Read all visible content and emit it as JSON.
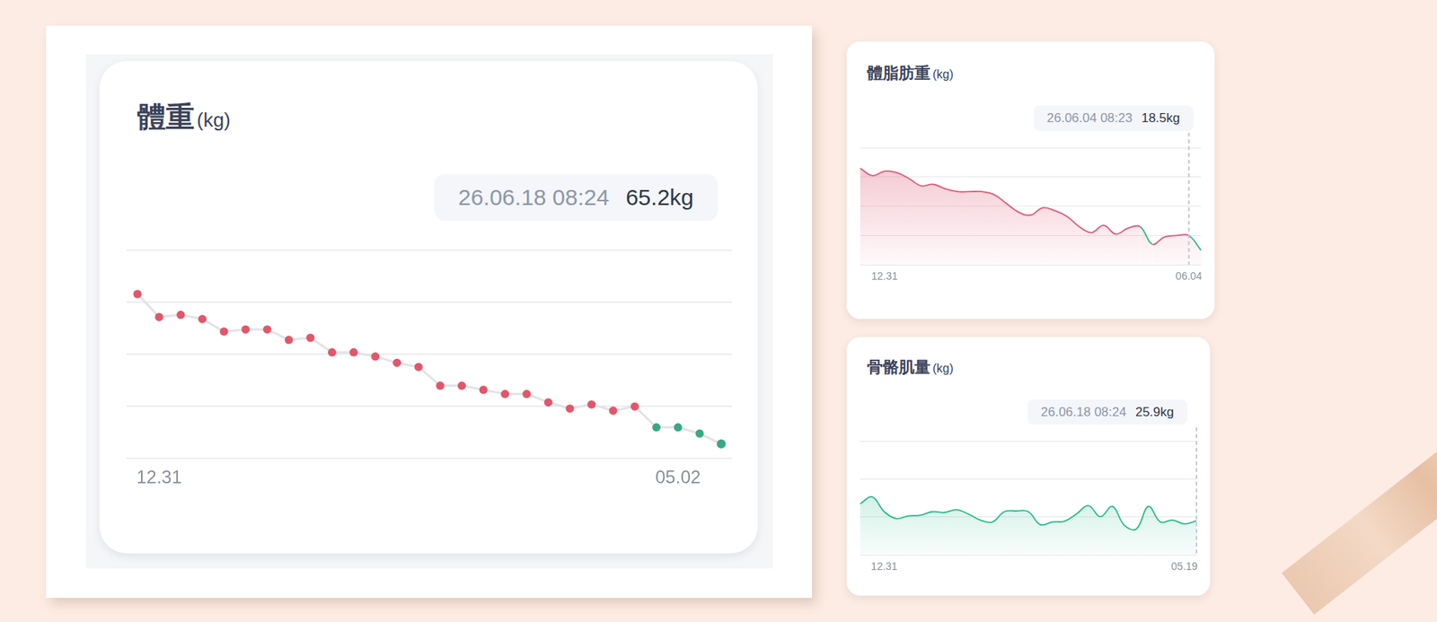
{
  "chart_data": [
    {
      "type": "line",
      "title": "體重",
      "subtitle": "(kg)",
      "annotation": {
        "label": "26.06.18 08:24",
        "value": 65.2,
        "value_label": "65.2kg"
      },
      "categories": [
        null,
        "12.31",
        null,
        null,
        null,
        null,
        null,
        null,
        null,
        null,
        null,
        null,
        null,
        null,
        null,
        null,
        null,
        null,
        null,
        null,
        null,
        null,
        null,
        null,
        null,
        "05.02",
        null,
        null
      ],
      "values": [
        72.4,
        71.3,
        71.4,
        71.2,
        70.6,
        70.7,
        70.7,
        70.2,
        70.3,
        69.6,
        69.6,
        69.4,
        69.1,
        68.9,
        68.0,
        68.0,
        67.8,
        67.6,
        67.6,
        67.2,
        66.9,
        67.1,
        66.8,
        67.0,
        66.0,
        66.0,
        65.7,
        65.2
      ],
      "color": "#e2e3e8",
      "colors": [
        "#e3566a",
        "#e3566a",
        "#e3566a",
        "#e3566a",
        "#e3566a",
        "#e3566a",
        "#e3566a",
        "#e3566a",
        "#e3566a",
        "#e3566a",
        "#e3566a",
        "#e3566a",
        "#e3566a",
        "#e3566a",
        "#e3566a",
        "#e3566a",
        "#e3566a",
        "#e3566a",
        "#e3566a",
        "#e3566a",
        "#e3566a",
        "#e3566a",
        "#e3566a",
        "#e3566a",
        "#3aa882",
        "#3aa882",
        "#3aa882",
        "#3aa882"
      ],
      "marker": "circle",
      "line_style": "solid",
      "ylim": [
        64.5,
        74.5
      ],
      "yticks": [
        64.5,
        67,
        69.5,
        72,
        74.5
      ],
      "grid": true,
      "tick_labels": "x"
    },
    {
      "type": "area",
      "title": "體脂肪重",
      "subtitle": "(kg)",
      "annotation": {
        "label": "26.06.04 08:23",
        "value": 18.5,
        "value_label": "18.5kg"
      },
      "categories": [
        null,
        null,
        "12.31",
        null,
        null,
        null,
        null,
        null,
        null,
        null,
        null,
        null,
        null,
        null,
        null,
        null,
        null,
        null,
        null,
        null,
        null,
        null,
        null,
        null,
        null,
        null,
        null,
        "06.04",
        null
      ],
      "values": [
        23.1,
        22.6,
        22.9,
        22.8,
        22.4,
        21.9,
        22.0,
        21.7,
        21.5,
        21.5,
        21.5,
        21.3,
        20.7,
        20.1,
        19.9,
        20.4,
        20.2,
        19.8,
        19.1,
        18.7,
        19.2,
        18.6,
        19.0,
        19.1,
        17.9,
        18.4,
        18.5,
        18.5,
        17.5
      ],
      "color": "#e05a78",
      "colors": [
        "#e05a78",
        "#e05a78",
        "#e05a78",
        "#e05a78",
        "#e05a78",
        "#e05a78",
        "#e05a78",
        "#e05a78",
        "#e05a78",
        "#e05a78",
        "#e05a78",
        "#e05a78",
        "#e05a78",
        "#e05a78",
        "#e05a78",
        "#e05a78",
        "#e05a78",
        "#e05a78",
        "#e05a78",
        "#e05a78",
        "#e05a78",
        "#e05a78",
        "#e05a78",
        "#e05a78",
        "#2dbb8a",
        "#e05a78",
        "#e05a78",
        "#e05a78",
        "#2dbb8a"
      ],
      "marker": "none",
      "line_style": "smooth",
      "ylim": [
        16.5,
        24.5
      ],
      "yticks": [
        16.5,
        18.5,
        20.5,
        22.5,
        24.5
      ],
      "grid": true,
      "tick_labels": "x"
    },
    {
      "type": "area",
      "title": "骨骼肌量",
      "subtitle": "(kg)",
      "annotation": {
        "label": "26.06.18 08:24",
        "value": 25.9,
        "value_label": "25.9kg"
      },
      "categories": [
        null,
        null,
        "12.31",
        null,
        null,
        null,
        null,
        null,
        null,
        null,
        null,
        null,
        null,
        null,
        null,
        null,
        null,
        null,
        null,
        null,
        null,
        null,
        null,
        null,
        null,
        null,
        null,
        "05.19",
        null
      ],
      "values": [
        26.35,
        26.53,
        26.14,
        25.96,
        26.03,
        26.05,
        26.14,
        26.12,
        26.19,
        26.08,
        25.92,
        25.87,
        26.14,
        26.16,
        26.14,
        25.8,
        25.87,
        25.89,
        26.08,
        26.3,
        26.01,
        26.28,
        25.78,
        25.69,
        26.28,
        25.87,
        25.92,
        25.82,
        25.9
      ],
      "color": "#2dbb8a",
      "marker": "none",
      "line_style": "smooth",
      "ylim": [
        25,
        28
      ],
      "yticks": [
        25,
        26,
        27,
        28
      ],
      "grid": true,
      "tick_labels": "x"
    }
  ]
}
